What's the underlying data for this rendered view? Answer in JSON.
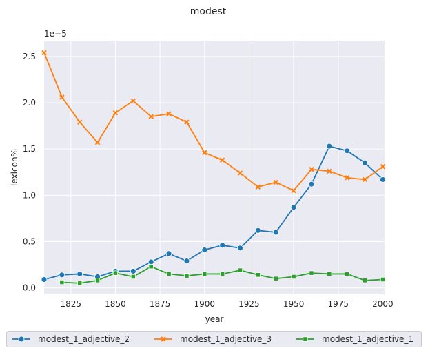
{
  "chart_data": {
    "type": "line",
    "title": "modest",
    "xlabel": "year",
    "ylabel": "lexicon%",
    "y_offset_label": "1e−5",
    "xlim": [
      1810,
      2001
    ],
    "ylim": [
      -0.07,
      2.67
    ],
    "x_ticks": [
      1825,
      1850,
      1875,
      1900,
      1925,
      1950,
      1975,
      2000
    ],
    "y_ticks": [
      0.0,
      0.5,
      1.0,
      1.5,
      2.0,
      2.5
    ],
    "y_tick_labels": [
      "0.0",
      "0.5",
      "1.0",
      "1.5",
      "2.0",
      "2.5"
    ],
    "grid": true,
    "legend_position": "bottom",
    "background": "#eaeaf2",
    "series": [
      {
        "name": "modest_1_adjective_2",
        "color": "#1f77b4",
        "marker": "circle",
        "x": [
          1810,
          1820,
          1830,
          1840,
          1850,
          1860,
          1870,
          1880,
          1890,
          1900,
          1910,
          1920,
          1930,
          1940,
          1950,
          1960,
          1970,
          1980,
          1990,
          2000
        ],
        "y": [
          0.09,
          0.14,
          0.15,
          0.12,
          0.18,
          0.18,
          0.28,
          0.37,
          0.29,
          0.41,
          0.46,
          0.43,
          0.62,
          0.6,
          0.87,
          1.12,
          1.53,
          1.48,
          1.35,
          1.17
        ]
      },
      {
        "name": "modest_1_adjective_3",
        "color": "#ff7f0e",
        "marker": "x",
        "x": [
          1810,
          1820,
          1830,
          1840,
          1850,
          1860,
          1870,
          1880,
          1890,
          1900,
          1910,
          1920,
          1930,
          1940,
          1950,
          1960,
          1970,
          1980,
          1990,
          2000
        ],
        "y": [
          2.54,
          2.06,
          1.79,
          1.57,
          1.89,
          2.02,
          1.85,
          1.88,
          1.79,
          1.46,
          1.38,
          1.24,
          1.09,
          1.14,
          1.05,
          1.28,
          1.26,
          1.19,
          1.17,
          1.31
        ]
      },
      {
        "name": "modest_1_adjective_1",
        "color": "#2ca02c",
        "marker": "square",
        "x": [
          1820,
          1830,
          1840,
          1850,
          1860,
          1870,
          1880,
          1890,
          1900,
          1910,
          1920,
          1930,
          1940,
          1950,
          1960,
          1970,
          1980,
          1990,
          2000
        ],
        "y": [
          0.06,
          0.05,
          0.08,
          0.16,
          0.12,
          0.23,
          0.15,
          0.13,
          0.15,
          0.15,
          0.19,
          0.14,
          0.1,
          0.12,
          0.16,
          0.15,
          0.15,
          0.08,
          0.09
        ]
      }
    ]
  }
}
